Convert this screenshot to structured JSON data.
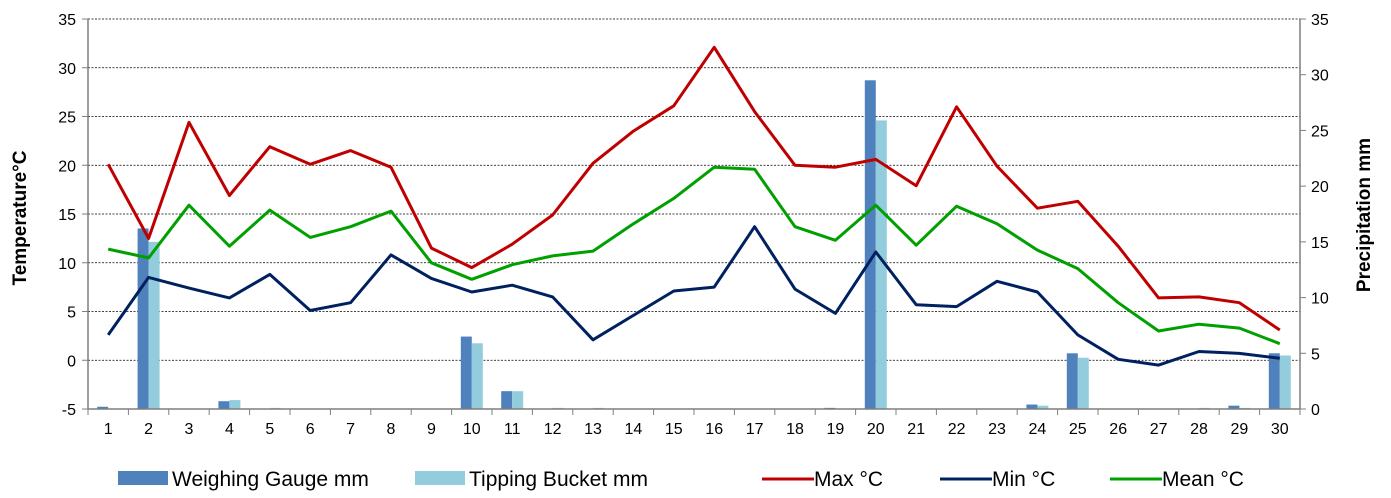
{
  "chart_data": {
    "type": "bar+line",
    "x": [
      1,
      2,
      3,
      4,
      5,
      6,
      7,
      8,
      9,
      10,
      11,
      12,
      13,
      14,
      15,
      16,
      17,
      18,
      19,
      20,
      21,
      22,
      23,
      24,
      25,
      26,
      27,
      28,
      29,
      30
    ],
    "left_axis": {
      "label": "Temperature°C",
      "ylim": [
        -5,
        35
      ],
      "ticks": [
        -5,
        0,
        5,
        10,
        15,
        20,
        25,
        30,
        35
      ]
    },
    "right_axis": {
      "label": "Precipitation mm",
      "ylim": [
        0,
        35
      ],
      "ticks": [
        0,
        5,
        10,
        15,
        20,
        25,
        30,
        35
      ]
    },
    "grid": "horizontal",
    "legend_position": "bottom",
    "bar_series": [
      {
        "name": "Weighing Gauge mm",
        "color": "#4f81bd",
        "values": [
          0.2,
          16.2,
          0,
          0.7,
          0,
          0,
          0,
          0,
          0,
          6.5,
          1.6,
          0,
          0,
          0,
          0,
          0,
          0,
          0,
          0.1,
          29.5,
          0,
          0,
          0,
          0.4,
          5,
          0,
          0,
          0,
          0.3,
          5
        ]
      },
      {
        "name": "Tipping Bucket mm",
        "color": "#93cddd",
        "values": [
          0,
          15,
          0,
          0.8,
          0.1,
          0,
          0,
          0,
          0,
          5.9,
          1.6,
          0.1,
          0.1,
          0,
          0,
          0,
          0,
          0,
          0,
          25.9,
          0,
          0,
          0,
          0.3,
          4.6,
          0,
          0,
          0.1,
          0.1,
          4.8
        ]
      }
    ],
    "line_series": [
      {
        "name": "Max °C",
        "color": "#c00000",
        "values": [
          20.1,
          12.5,
          24.4,
          16.9,
          21.9,
          20.1,
          21.5,
          19.8,
          11.5,
          9.5,
          11.9,
          14.9,
          20.2,
          23.5,
          26.1,
          32.1,
          25.5,
          20,
          19.8,
          20.6,
          17.9,
          26,
          19.9,
          15.6,
          16.3,
          11.7,
          6.4,
          6.5,
          5.9,
          3.1
        ]
      },
      {
        "name": "Min °C",
        "color": "#002060",
        "values": [
          2.6,
          8.5,
          7.4,
          6.4,
          8.8,
          5.1,
          5.9,
          10.8,
          8.4,
          7,
          7.7,
          6.5,
          2.1,
          4.6,
          7.1,
          7.5,
          13.7,
          7.3,
          4.8,
          11.1,
          5.7,
          5.5,
          8.1,
          7,
          2.6,
          0.1,
          -0.5,
          0.9,
          0.7,
          0.2
        ]
      },
      {
        "name": "Mean °C",
        "color": "#00a000",
        "values": [
          11.4,
          10.5,
          15.9,
          11.7,
          15.4,
          12.6,
          13.7,
          15.3,
          10,
          8.3,
          9.8,
          10.7,
          11.2,
          14,
          16.6,
          19.8,
          19.6,
          13.7,
          12.3,
          15.9,
          11.8,
          15.8,
          14,
          11.3,
          9.4,
          5.9,
          3,
          3.7,
          3.3,
          1.7
        ]
      }
    ]
  }
}
